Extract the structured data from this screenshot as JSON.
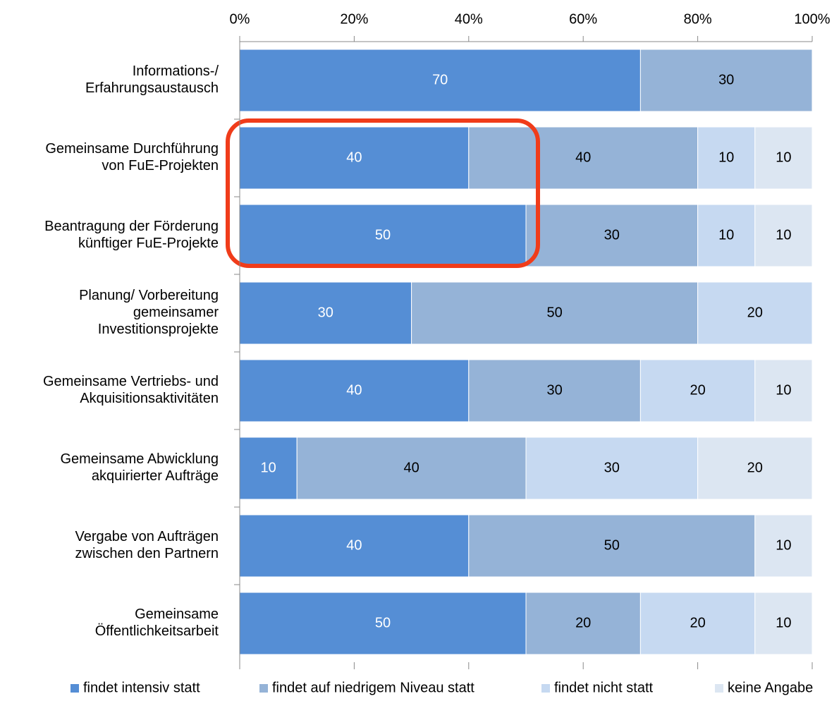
{
  "chart_data": {
    "type": "stacked_barh",
    "categories": [
      "Informations-/\nErfahrungsaustausch",
      "Gemeinsame Durchführung\nvon FuE-Projekten",
      "Beantragung der Förderung\nkünftiger FuE-Projekte",
      "Planung/ Vorbereitung\ngemeinsamer\nInvestitionsprojekte",
      "Gemeinsame Vertriebs- und\nAkquisitionsaktivitäten",
      "Gemeinsame Abwicklung\nakquirierter Aufträge",
      "Vergabe von Aufträgen\nzwischen den Partnern",
      "Gemeinsame\nÖffentlichkeitsarbeit"
    ],
    "series": [
      {
        "name": "findet intensiv statt",
        "color": "#558ed5",
        "values": [
          70,
          40,
          50,
          30,
          40,
          10,
          40,
          50
        ]
      },
      {
        "name": "findet auf niedrigem Niveau statt",
        "color": "#95b3d7",
        "values": [
          30,
          40,
          30,
          50,
          30,
          40,
          50,
          20
        ]
      },
      {
        "name": "findet nicht statt",
        "color": "#c6d9f1",
        "values": [
          null,
          10,
          10,
          20,
          20,
          30,
          null,
          20
        ]
      },
      {
        "name": "keine Angabe",
        "color": "#dce6f2",
        "values": [
          null,
          10,
          10,
          null,
          10,
          20,
          10,
          10
        ]
      }
    ],
    "xlim": [
      0,
      100
    ],
    "xticks": [
      {
        "value": 0,
        "label": "0%"
      },
      {
        "value": 20,
        "label": "20%"
      },
      {
        "value": 40,
        "label": "40%"
      },
      {
        "value": 60,
        "label": "60%"
      },
      {
        "value": 80,
        "label": "80%"
      },
      {
        "value": 100,
        "label": "100%"
      }
    ],
    "legend": "bottom"
  }
}
